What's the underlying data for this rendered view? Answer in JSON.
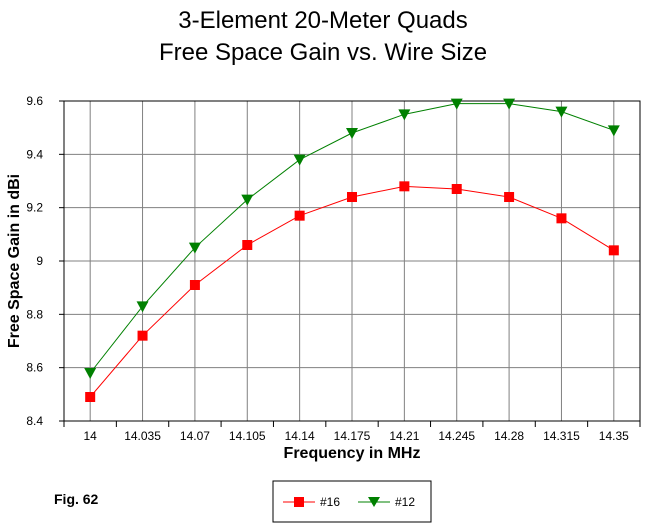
{
  "chart_data": {
    "type": "line",
    "title": [
      "3-Element 20-Meter Quads",
      "Free Space Gain vs. Wire Size"
    ],
    "xlabel": "Frequency in MHz",
    "ylabel": "Free Space Gain in dBi",
    "x": [
      "14",
      "14.035",
      "14.07",
      "14.105",
      "14.14",
      "14.175",
      "14.21",
      "14.245",
      "14.28",
      "14.315",
      "14.35"
    ],
    "ylim": [
      8.4,
      9.6
    ],
    "yticks": [
      "8.4",
      "8.6",
      "8.8",
      "9",
      "9.2",
      "9.4",
      "9.6"
    ],
    "grid": true,
    "legend_position": "bottom-center",
    "series": [
      {
        "name": "#16",
        "color": "#ff0000",
        "marker": "square",
        "values": [
          8.49,
          8.72,
          8.91,
          9.06,
          9.17,
          9.24,
          9.28,
          9.27,
          9.24,
          9.16,
          9.04
        ]
      },
      {
        "name": "#12",
        "color": "#008000",
        "marker": "triangle-down",
        "values": [
          8.58,
          8.83,
          9.05,
          9.23,
          9.38,
          9.48,
          9.55,
          9.59,
          9.59,
          9.56,
          9.49
        ]
      }
    ]
  },
  "figure_label": "Fig. 62"
}
